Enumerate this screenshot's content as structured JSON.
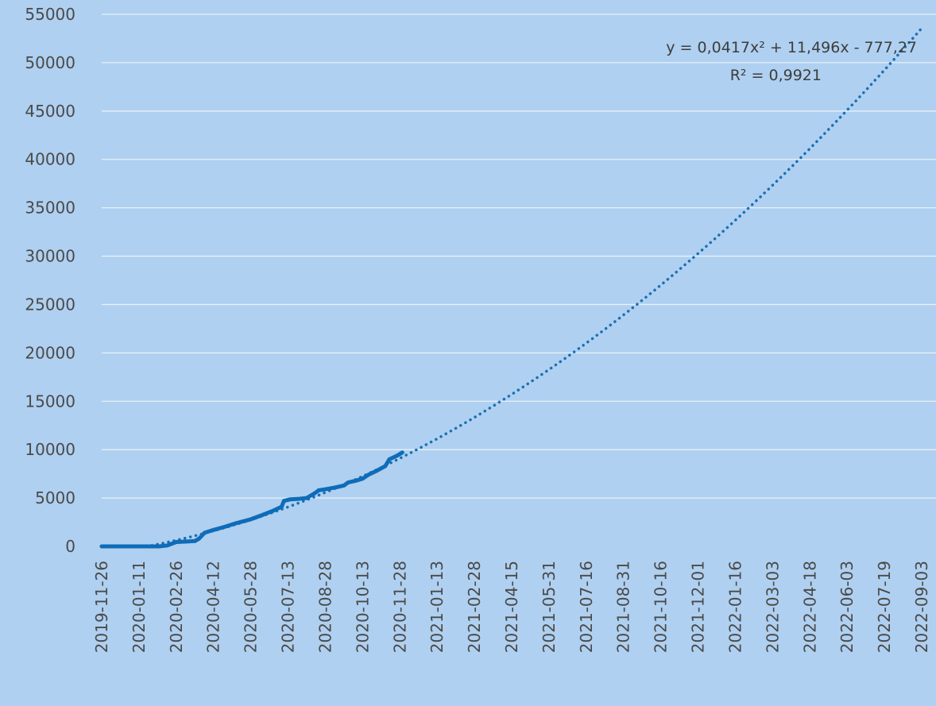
{
  "chart_data": {
    "type": "line",
    "title": "",
    "xlabel": "",
    "ylabel": "",
    "ylim": [
      0,
      55000
    ],
    "xlim": [
      "2019-11-26",
      "2022-09-03"
    ],
    "y_ticks": [
      0,
      5000,
      10000,
      15000,
      20000,
      25000,
      30000,
      35000,
      40000,
      45000,
      50000,
      55000
    ],
    "x_tick_labels": [
      "2019-11-26",
      "2020-01-11",
      "2020-02-26",
      "2020-04-12",
      "2020-05-28",
      "2020-07-13",
      "2020-08-28",
      "2020-10-13",
      "2020-11-28",
      "2021-01-13",
      "2021-02-28",
      "2021-04-15",
      "2021-05-31",
      "2021-07-16",
      "2021-08-31",
      "2021-10-16",
      "2021-12-01",
      "2022-01-16",
      "2022-03-03",
      "2022-04-18",
      "2022-06-03",
      "2022-07-19",
      "2022-09-03"
    ],
    "grid": true,
    "legend": "none",
    "colors": {
      "background": "#afd0f0",
      "series": "#0e6cb8",
      "trendline": "#1a6fb5",
      "grid": "#e8f1fa"
    },
    "series": [
      {
        "x": [
          "2019-11-26",
          "2020-01-11",
          "2020-02-05",
          "2020-02-15",
          "2020-02-26",
          "2020-03-10",
          "2020-03-20",
          "2020-03-25",
          "2020-04-01",
          "2020-04-12",
          "2020-04-25",
          "2020-05-10",
          "2020-05-28",
          "2020-06-10",
          "2020-06-25",
          "2020-07-05",
          "2020-07-08",
          "2020-07-15",
          "2020-07-25",
          "2020-08-05",
          "2020-08-15",
          "2020-08-20",
          "2020-08-28",
          "2020-09-10",
          "2020-09-20",
          "2020-09-25",
          "2020-10-05",
          "2020-10-13",
          "2020-10-20",
          "2020-10-30",
          "2020-11-10",
          "2020-11-15",
          "2020-11-25",
          "2020-12-01"
        ],
        "values": [
          0,
          0,
          0,
          100,
          450,
          500,
          550,
          800,
          1400,
          1700,
          2000,
          2400,
          2800,
          3200,
          3700,
          4100,
          4700,
          4850,
          4900,
          5000,
          5500,
          5800,
          5900,
          6100,
          6300,
          6600,
          6800,
          7000,
          7400,
          7800,
          8300,
          9000,
          9400,
          9700
        ]
      }
    ],
    "trendline": {
      "type": "polynomial",
      "order": 2,
      "equation": "y = 0,0417x² + 11,496x - 777,27",
      "r_squared": "R² = 0,9921"
    }
  }
}
